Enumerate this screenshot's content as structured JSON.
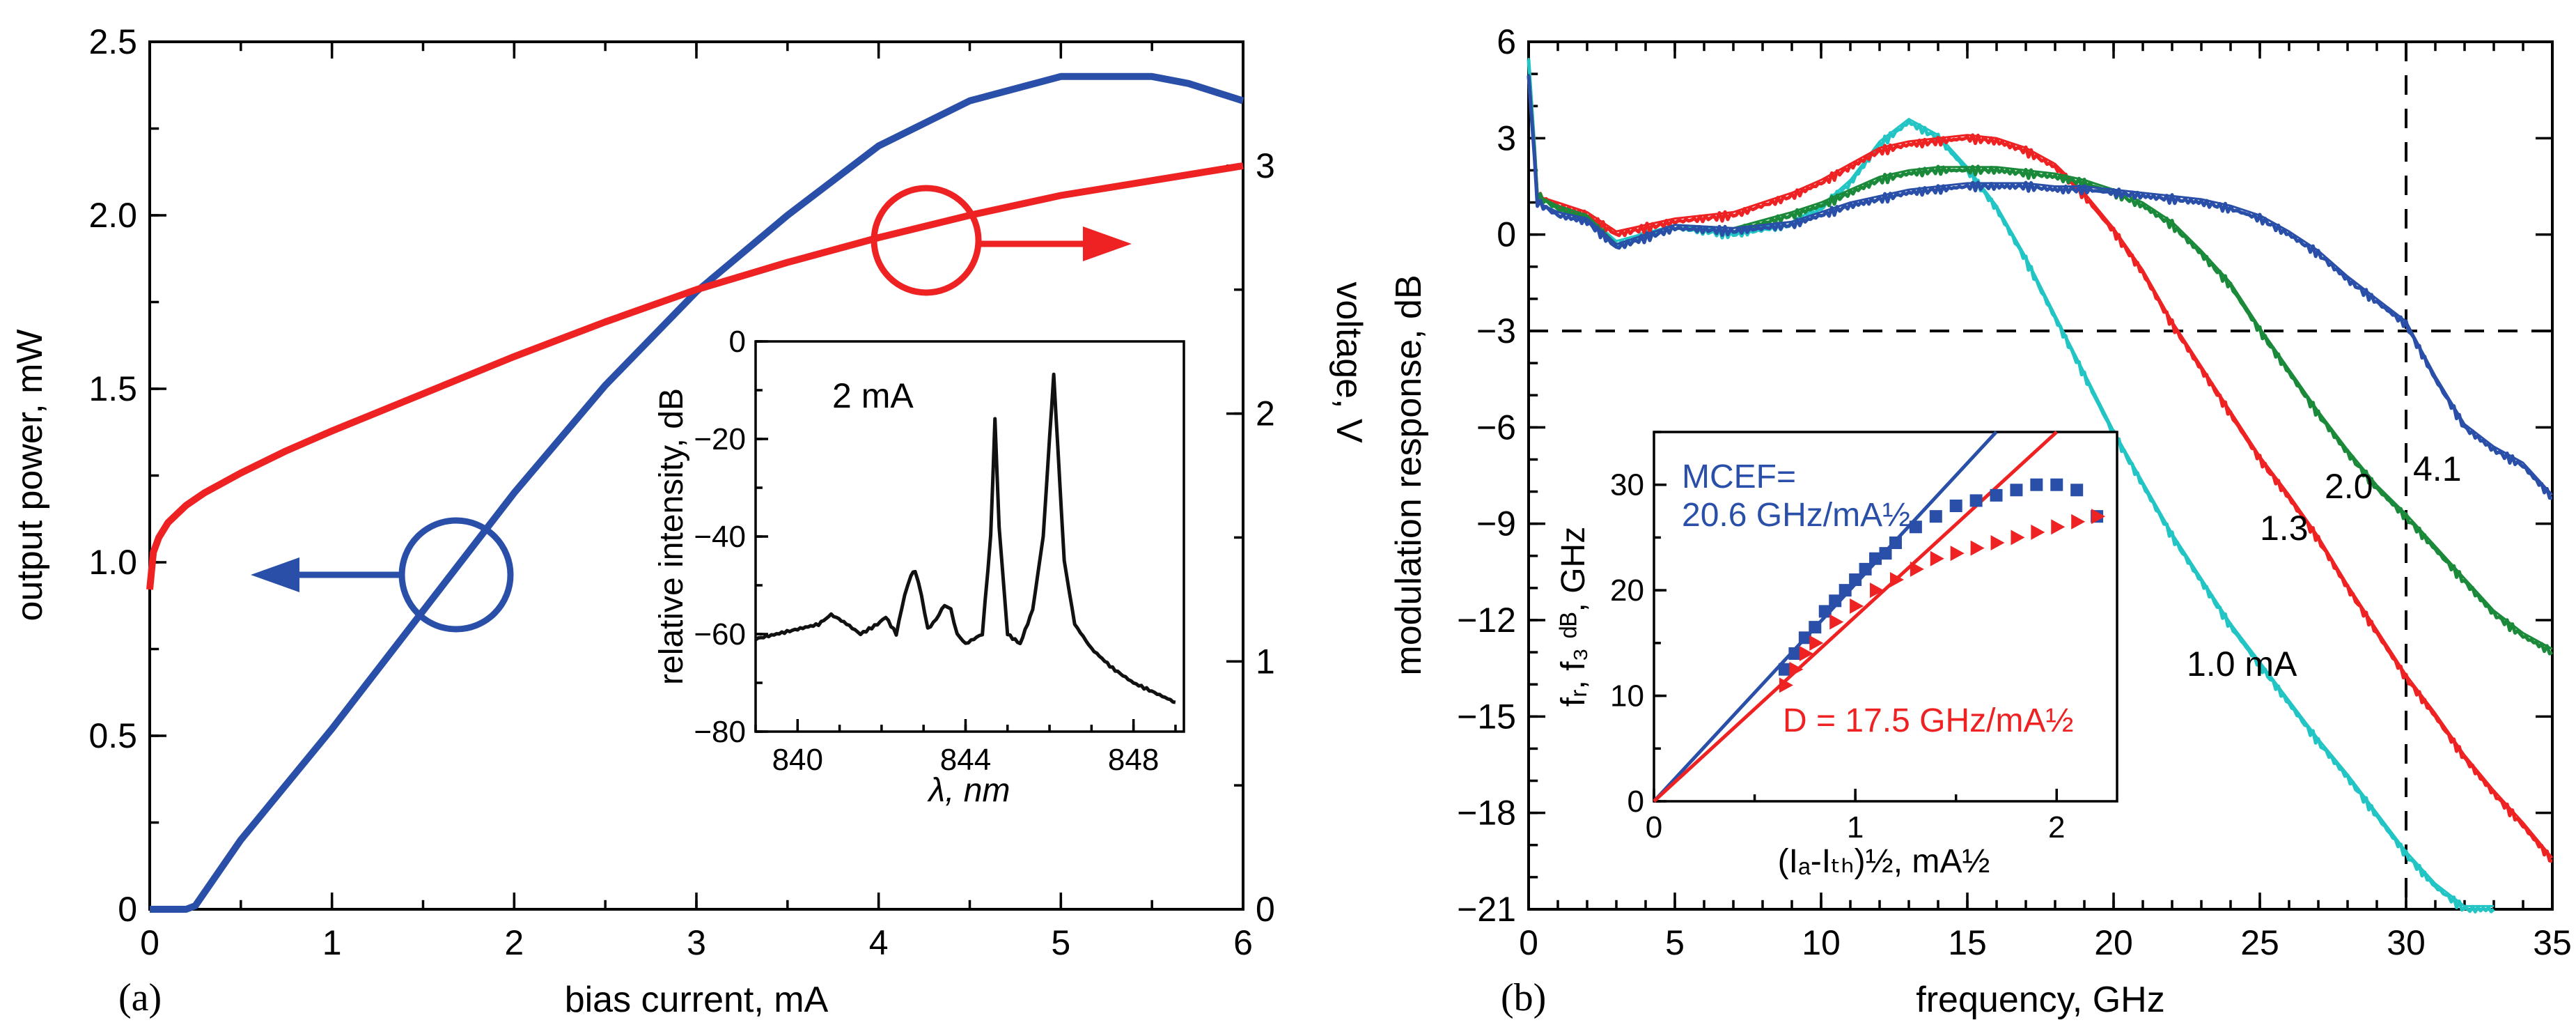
{
  "chart_data": [
    {
      "id": "a",
      "panel_label": "(a)",
      "type": "line",
      "xlabel": "bias current, mA",
      "ylabel": "output power, mW",
      "y2label": "voltage, V",
      "xlim": [
        0,
        6
      ],
      "ylim": [
        0,
        2.5
      ],
      "y2lim": [
        0,
        3.5
      ],
      "x_ticks": [
        "0",
        "1",
        "2",
        "3",
        "4",
        "5",
        "6"
      ],
      "y_ticks": [
        "0",
        "0.5",
        "1.0",
        "1.5",
        "2.0",
        "2.5"
      ],
      "y2_ticks": [
        "0",
        "1",
        "2",
        "3"
      ],
      "series": [
        {
          "name": "output power",
          "color": "#2a4fa8",
          "axis": "left",
          "x": [
            0,
            0.2,
            0.25,
            0.5,
            1.0,
            1.5,
            2.0,
            2.5,
            3.0,
            3.5,
            4.0,
            4.5,
            5.0,
            5.5,
            5.7,
            6.0
          ],
          "y": [
            0,
            0,
            0.01,
            0.2,
            0.52,
            0.86,
            1.2,
            1.51,
            1.78,
            2.0,
            2.2,
            2.33,
            2.4,
            2.4,
            2.38,
            2.33
          ]
        },
        {
          "name": "voltage",
          "color": "#ee2222",
          "axis": "right",
          "x": [
            0,
            0.02,
            0.05,
            0.1,
            0.2,
            0.3,
            0.5,
            0.75,
            1.0,
            1.5,
            2.0,
            2.5,
            3.0,
            3.5,
            4.0,
            4.5,
            5.0,
            5.5,
            6.0
          ],
          "y": [
            1.29,
            1.44,
            1.5,
            1.56,
            1.63,
            1.68,
            1.76,
            1.85,
            1.93,
            2.08,
            2.23,
            2.37,
            2.5,
            2.61,
            2.71,
            2.8,
            2.88,
            2.94,
            3.0
          ]
        }
      ],
      "inset": {
        "type": "line",
        "annotation": "2 mA",
        "xlabel": "λ, nm",
        "ylabel": "relative intensity, dB",
        "xlim": [
          839,
          849.2
        ],
        "ylim": [
          -80,
          0
        ],
        "x_ticks": [
          "840",
          "844",
          "848"
        ],
        "y_ticks": [
          "0",
          "-20",
          "-40",
          "-60",
          "-80"
        ],
        "series": [
          {
            "name": "spectrum",
            "color": "#111111",
            "x": [
              839,
              839.5,
              840,
              840.5,
              840.8,
              841.1,
              841.5,
              841.9,
              842.1,
              842.35,
              842.55,
              842.7,
              842.8,
              842.95,
              843.1,
              843.3,
              843.5,
              843.65,
              843.8,
              844.0,
              844.2,
              844.4,
              844.6,
              844.7,
              844.8,
              845.0,
              845.3,
              845.6,
              845.85,
              846.0,
              846.1,
              846.2,
              846.35,
              846.6,
              847.0,
              847.5,
              848.0,
              848.5,
              849.0
            ],
            "y": [
              -61,
              -60,
              -59,
              -58,
              -56,
              -57.5,
              -60,
              -58,
              -56.5,
              -60,
              -52,
              -48,
              -47,
              -52,
              -59,
              -57,
              -54,
              -55,
              -60,
              -62,
              -61,
              -60,
              -40,
              -16,
              -38,
              -60,
              -62,
              -55,
              -40,
              -20,
              -7,
              -22,
              -45,
              -58,
              -63,
              -67,
              -70,
              -72,
              -74
            ]
          }
        ]
      }
    },
    {
      "id": "b",
      "panel_label": "(b)",
      "type": "line",
      "xlabel": "frequency, GHz",
      "ylabel": "modulation response, dB",
      "xlim": [
        0,
        35
      ],
      "ylim": [
        -21,
        6
      ],
      "x_ticks": [
        "0",
        "5",
        "10",
        "15",
        "20",
        "25",
        "30",
        "35"
      ],
      "y_ticks": [
        "6",
        "3",
        "0",
        "-3",
        "-6",
        "-9",
        "-12",
        "-15",
        "-18",
        "-21"
      ],
      "reference_lines": {
        "y_at_dB": -3,
        "x_at_GHz": 30
      },
      "curve_labels": [
        "1.0 mA",
        "1.3",
        "2.0",
        "4.1"
      ],
      "series": [
        {
          "name": "1.0 mA",
          "color": "#22c4c4",
          "x": [
            0,
            0.3,
            1,
            2,
            3,
            5,
            7,
            9,
            10,
            11,
            12,
            13,
            14,
            15,
            16,
            17,
            18,
            19,
            20,
            21,
            22,
            23,
            24,
            25,
            26,
            27,
            28,
            29,
            30,
            31,
            32,
            33
          ],
          "y": [
            5.5,
            1.2,
            0.8,
            0.5,
            -0.3,
            0.2,
            0,
            0.3,
            0.8,
            1.6,
            2.8,
            3.5,
            3.0,
            2.0,
            0.8,
            -0.8,
            -2.6,
            -4.4,
            -6.2,
            -7.8,
            -9.4,
            -10.8,
            -12.2,
            -13.4,
            -14.6,
            -15.8,
            -16.9,
            -18.1,
            -19.3,
            -20.3,
            -21.0,
            -21.0
          ]
        },
        {
          "name": "1.3 mA",
          "color": "#ee2222",
          "x": [
            0,
            0.3,
            1,
            2,
            3,
            5,
            7,
            9,
            10,
            11,
            12,
            13,
            14,
            15,
            16,
            17,
            18,
            19,
            20,
            21,
            22,
            23,
            24,
            25,
            26,
            27,
            28,
            29,
            30,
            31,
            32,
            33,
            34,
            35
          ],
          "y": [
            5.0,
            1.2,
            0.9,
            0.6,
            0,
            0.4,
            0.6,
            1.2,
            1.6,
            2.1,
            2.6,
            2.8,
            2.9,
            3.0,
            2.9,
            2.6,
            2.1,
            1.2,
            0.1,
            -1.2,
            -2.8,
            -4.2,
            -5.6,
            -7.0,
            -8.2,
            -9.5,
            -11.0,
            -12.4,
            -13.8,
            -15.0,
            -16.3,
            -17.4,
            -18.4,
            -19.5
          ]
        },
        {
          "name": "2.0 mA",
          "color": "#1a8a3a",
          "x": [
            0,
            0.3,
            1,
            2,
            3,
            5,
            7,
            9,
            10,
            11,
            12,
            13,
            14,
            15,
            16,
            17,
            18,
            19,
            20,
            21,
            22,
            23,
            24,
            25,
            26,
            27,
            28,
            29,
            30,
            31,
            32,
            33,
            34,
            35
          ],
          "y": [
            5.0,
            1.2,
            0.8,
            0.5,
            -0.4,
            0.2,
            0.1,
            0.6,
            0.9,
            1.3,
            1.7,
            1.9,
            2.0,
            2.0,
            2.0,
            1.9,
            1.8,
            1.6,
            1.3,
            0.9,
            0.3,
            -0.6,
            -1.6,
            -3.0,
            -4.3,
            -5.6,
            -6.8,
            -7.9,
            -8.8,
            -9.8,
            -10.8,
            -11.8,
            -12.5,
            -13.0
          ]
        },
        {
          "name": "4.1 mA",
          "color": "#2a4fa8",
          "x": [
            0,
            0.3,
            1,
            2,
            3,
            5,
            7,
            9,
            10,
            11,
            12,
            13,
            14,
            15,
            16,
            17,
            18,
            19,
            20,
            21,
            22,
            23,
            24,
            25,
            26,
            27,
            28,
            29,
            30,
            31,
            32,
            33,
            34,
            35
          ],
          "y": [
            5.0,
            1.0,
            0.6,
            0.4,
            -0.4,
            0.2,
            0.1,
            0.3,
            0.6,
            0.9,
            1.1,
            1.3,
            1.4,
            1.5,
            1.5,
            1.5,
            1.4,
            1.4,
            1.3,
            1.2,
            1.1,
            1.0,
            0.8,
            0.5,
            0,
            -0.6,
            -1.4,
            -2.1,
            -2.8,
            -4.5,
            -6.0,
            -6.7,
            -7.2,
            -8.2
          ]
        }
      ],
      "inset": {
        "type": "scatter",
        "xlabel": "(Iₐ-Iₜₕ)½, mA½",
        "ylabel": "fᵣ, f₃ ᵈᴮ, GHz",
        "xlim": [
          0,
          2.3
        ],
        "ylim": [
          0,
          35
        ],
        "x_ticks": [
          "0",
          "1",
          "2"
        ],
        "y_ticks": [
          "0",
          "10",
          "20",
          "30"
        ],
        "annotation_blue": "MCEF=",
        "annotation_blue_value": "20.6 GHz/mA½",
        "annotation_red": "D = 17.5 GHz/mA½",
        "series": [
          {
            "name": "MCEF fit",
            "kind": "line",
            "color": "#2a4fa8",
            "x": [
              0,
              1.7
            ],
            "y": [
              0,
              35
            ]
          },
          {
            "name": "D fit",
            "kind": "line",
            "color": "#ee2222",
            "x": [
              0,
              2.0
            ],
            "y": [
              0,
              35
            ]
          },
          {
            "name": "f_3dB (squares)",
            "kind": "scatter",
            "marker": "square",
            "color": "#2a4fa8",
            "x": [
              0.65,
              0.7,
              0.75,
              0.8,
              0.85,
              0.9,
              0.95,
              1.0,
              1.05,
              1.1,
              1.15,
              1.2,
              1.3,
              1.4,
              1.5,
              1.6,
              1.7,
              1.8,
              1.9,
              2.0,
              2.1,
              2.2
            ],
            "y": [
              12.5,
              14,
              15.5,
              16.5,
              18,
              19,
              20,
              21,
              22,
              23,
              23.5,
              24.5,
              26,
              27,
              28,
              28.5,
              29,
              29.5,
              30,
              30,
              29.5,
              27
            ]
          },
          {
            "name": "f_r (triangles)",
            "kind": "scatter",
            "marker": "triangle",
            "color": "#ee2222",
            "x": [
              0.65,
              0.7,
              0.75,
              0.8,
              0.9,
              1.0,
              1.1,
              1.2,
              1.3,
              1.4,
              1.5,
              1.6,
              1.7,
              1.8,
              1.9,
              2.0,
              2.1,
              2.2
            ],
            "y": [
              11,
              12.5,
              14,
              15,
              17,
              18.5,
              20,
              21,
              22,
              23,
              23.5,
              24,
              24.5,
              25,
              25.5,
              26,
              26.5,
              27
            ]
          }
        ]
      }
    }
  ]
}
